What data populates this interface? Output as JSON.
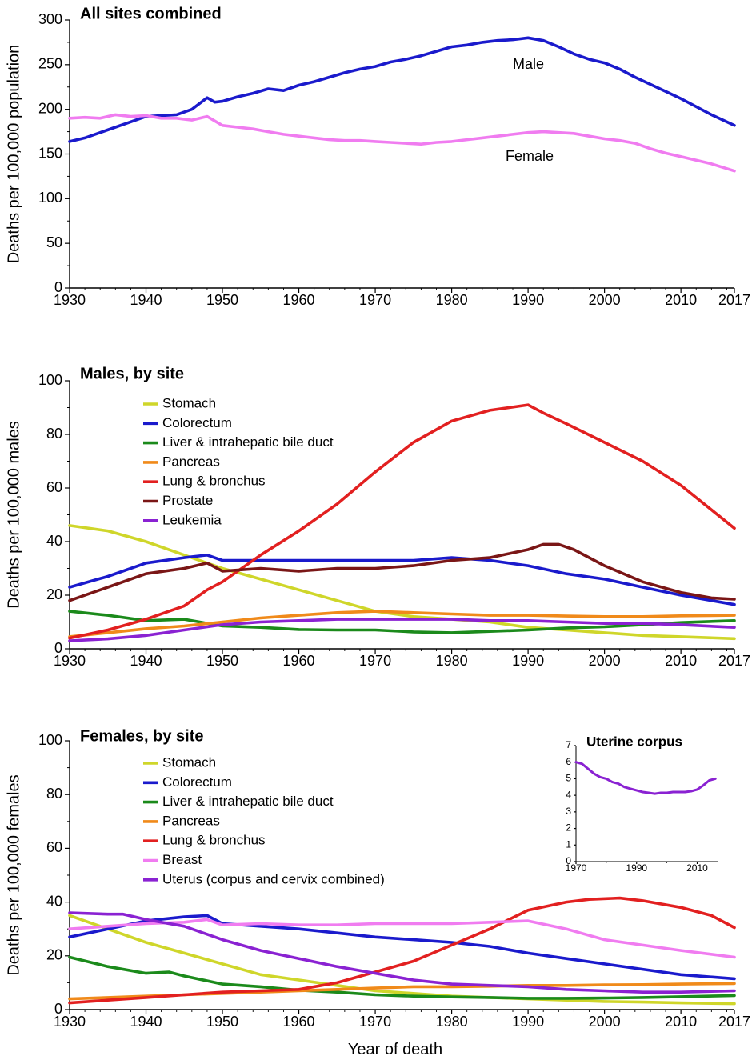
{
  "figure": {
    "xlabel": "Year of death"
  },
  "chart_data": [
    {
      "type": "line",
      "title": "All sites combined",
      "ylabel": "Deaths per 100,000 population",
      "xlim": [
        1930,
        2017
      ],
      "ylim": [
        0,
        300
      ],
      "xticks": [
        1930,
        1940,
        1950,
        1960,
        1970,
        1980,
        1990,
        2000,
        2010,
        2017
      ],
      "yticks": [
        0,
        50,
        100,
        150,
        200,
        250,
        300
      ],
      "series": [
        {
          "name": "Male",
          "label": "Male",
          "color": "#1a1acc",
          "x": [
            1930,
            1932,
            1934,
            1936,
            1938,
            1940,
            1942,
            1944,
            1946,
            1948,
            1949,
            1950,
            1952,
            1954,
            1956,
            1958,
            1960,
            1962,
            1964,
            1966,
            1968,
            1970,
            1972,
            1974,
            1976,
            1978,
            1980,
            1982,
            1984,
            1986,
            1988,
            1990,
            1992,
            1994,
            1996,
            1998,
            2000,
            2002,
            2004,
            2006,
            2008,
            2010,
            2012,
            2014,
            2017
          ],
          "y": [
            164,
            168,
            174,
            180,
            186,
            192,
            193,
            194,
            200,
            213,
            208,
            209,
            214,
            218,
            223,
            221,
            227,
            231,
            236,
            241,
            245,
            248,
            253,
            256,
            260,
            265,
            270,
            272,
            275,
            277,
            278,
            280,
            277,
            270,
            262,
            256,
            252,
            245,
            236,
            228,
            220,
            212,
            203,
            194,
            182
          ]
        },
        {
          "name": "Female",
          "label": "Female",
          "color": "#f07cf0",
          "x": [
            1930,
            1932,
            1934,
            1936,
            1938,
            1940,
            1942,
            1944,
            1946,
            1948,
            1950,
            1952,
            1954,
            1956,
            1958,
            1960,
            1962,
            1964,
            1966,
            1968,
            1970,
            1972,
            1974,
            1976,
            1978,
            1980,
            1982,
            1984,
            1986,
            1988,
            1990,
            1992,
            1994,
            1996,
            1998,
            2000,
            2002,
            2004,
            2006,
            2008,
            2010,
            2012,
            2014,
            2017
          ],
          "y": [
            190,
            191,
            190,
            194,
            192,
            193,
            190,
            190,
            188,
            192,
            182,
            180,
            178,
            175,
            172,
            170,
            168,
            166,
            165,
            165,
            164,
            163,
            162,
            161,
            163,
            164,
            166,
            168,
            170,
            172,
            174,
            175,
            174,
            173,
            170,
            167,
            165,
            162,
            156,
            151,
            147,
            143,
            139,
            131
          ]
        }
      ]
    },
    {
      "type": "line",
      "title": "Males, by site",
      "ylabel": "Deaths per 100,000 males",
      "xlim": [
        1930,
        2017
      ],
      "ylim": [
        0,
        100
      ],
      "xticks": [
        1930,
        1940,
        1950,
        1960,
        1970,
        1980,
        1990,
        2000,
        2010,
        2017
      ],
      "yticks": [
        0,
        20,
        40,
        60,
        80,
        100
      ],
      "legend": "top-left",
      "series": [
        {
          "name": "Stomach",
          "color": "#cfd62a",
          "x": [
            1930,
            1935,
            1940,
            1945,
            1950,
            1955,
            1960,
            1965,
            1970,
            1975,
            1980,
            1985,
            1990,
            1995,
            2000,
            2005,
            2010,
            2017
          ],
          "y": [
            46,
            44,
            40,
            35,
            30,
            26,
            22,
            18,
            14,
            12,
            11,
            10,
            8,
            7,
            6,
            5,
            4.5,
            3.8
          ]
        },
        {
          "name": "Colorectum",
          "color": "#1a1acc",
          "x": [
            1930,
            1935,
            1940,
            1945,
            1948,
            1950,
            1955,
            1960,
            1965,
            1970,
            1975,
            1980,
            1985,
            1990,
            1995,
            2000,
            2005,
            2010,
            2017
          ],
          "y": [
            23,
            27,
            32,
            34,
            35,
            33,
            33,
            33,
            33,
            33,
            33,
            34,
            33,
            31,
            28,
            26,
            23,
            20,
            16.5
          ]
        },
        {
          "name": "Liver & intrahepatic bile duct",
          "color": "#1b8a1b",
          "x": [
            1930,
            1935,
            1940,
            1945,
            1950,
            1955,
            1960,
            1965,
            1970,
            1975,
            1980,
            1985,
            1990,
            1995,
            2000,
            2005,
            2010,
            2017
          ],
          "y": [
            14,
            12.5,
            10.5,
            11,
            8.5,
            8,
            7.2,
            7,
            7,
            6.3,
            6,
            6.5,
            7,
            7.8,
            8.2,
            9,
            9.8,
            10.5
          ]
        },
        {
          "name": "Pancreas",
          "color": "#f08a1a",
          "x": [
            1930,
            1935,
            1940,
            1945,
            1950,
            1955,
            1960,
            1965,
            1970,
            1975,
            1980,
            1985,
            1990,
            1995,
            2000,
            2005,
            2010,
            2017
          ],
          "y": [
            4.5,
            6,
            7.5,
            8.5,
            10,
            11.5,
            12.5,
            13.5,
            14,
            13.5,
            13,
            12.5,
            12.5,
            12.2,
            12,
            12,
            12.3,
            12.5
          ]
        },
        {
          "name": "Lung & bronchus",
          "color": "#e22020",
          "x": [
            1930,
            1935,
            1940,
            1945,
            1948,
            1950,
            1955,
            1960,
            1965,
            1970,
            1975,
            1980,
            1985,
            1990,
            1992,
            1995,
            2000,
            2005,
            2010,
            2017
          ],
          "y": [
            4,
            7,
            11,
            16,
            22,
            25,
            35,
            44,
            54,
            66,
            77,
            85,
            89,
            91,
            88,
            84,
            77,
            70,
            61,
            45
          ]
        },
        {
          "name": "Prostate",
          "color": "#7a1616",
          "x": [
            1930,
            1935,
            1940,
            1945,
            1948,
            1950,
            1955,
            1960,
            1965,
            1970,
            1975,
            1980,
            1985,
            1990,
            1992,
            1994,
            1996,
            2000,
            2005,
            2010,
            2014,
            2017
          ],
          "y": [
            18,
            23,
            28,
            30,
            32,
            29,
            30,
            29,
            30,
            30,
            31,
            33,
            34,
            37,
            39,
            39,
            37,
            31,
            25,
            21,
            19,
            18.5
          ]
        },
        {
          "name": "Leukemia",
          "color": "#8a22d2",
          "x": [
            1930,
            1935,
            1940,
            1945,
            1950,
            1955,
            1960,
            1965,
            1970,
            1975,
            1980,
            1985,
            1990,
            1995,
            2000,
            2005,
            2010,
            2017
          ],
          "y": [
            3,
            3.7,
            5,
            7,
            9,
            10,
            10.5,
            11,
            11,
            11,
            11,
            10.5,
            10.5,
            10,
            9.5,
            9.5,
            9,
            8
          ]
        }
      ]
    },
    {
      "type": "line",
      "title": "Females, by site",
      "ylabel": "Deaths per 100,000 females",
      "xlim": [
        1930,
        2017
      ],
      "ylim": [
        0,
        100
      ],
      "xticks": [
        1930,
        1940,
        1950,
        1960,
        1970,
        1980,
        1990,
        2000,
        2010,
        2017
      ],
      "yticks": [
        0,
        20,
        40,
        60,
        80,
        100
      ],
      "legend": "top-left",
      "series": [
        {
          "name": "Stomach",
          "color": "#cfd62a",
          "x": [
            1930,
            1935,
            1940,
            1945,
            1950,
            1955,
            1960,
            1965,
            1970,
            1975,
            1980,
            1985,
            1990,
            1995,
            2000,
            2005,
            2010,
            2017
          ],
          "y": [
            35,
            30,
            25,
            21,
            17,
            13,
            11,
            9,
            7,
            6,
            5,
            4.5,
            4,
            3.5,
            3,
            2.8,
            2.5,
            2.2
          ]
        },
        {
          "name": "Colorectum",
          "color": "#1a1acc",
          "x": [
            1930,
            1935,
            1940,
            1945,
            1948,
            1950,
            1955,
            1960,
            1965,
            1970,
            1975,
            1980,
            1985,
            1990,
            1995,
            2000,
            2005,
            2010,
            2017
          ],
          "y": [
            27,
            30,
            33,
            34.5,
            35,
            32,
            31,
            30,
            28.5,
            27,
            26,
            25,
            23.5,
            21,
            19,
            17,
            15,
            13,
            11.5
          ]
        },
        {
          "name": "Liver & intrahepatic bile duct",
          "color": "#1b8a1b",
          "x": [
            1930,
            1935,
            1940,
            1943,
            1945,
            1950,
            1955,
            1960,
            1965,
            1970,
            1975,
            1980,
            1985,
            1990,
            1995,
            2000,
            2005,
            2010,
            2017
          ],
          "y": [
            19.5,
            16,
            13.5,
            14,
            12.5,
            9.5,
            8.5,
            7.2,
            6.5,
            5.5,
            5,
            4.7,
            4.5,
            4.2,
            4.2,
            4.3,
            4.5,
            4.8,
            5.2
          ]
        },
        {
          "name": "Pancreas",
          "color": "#f08a1a",
          "x": [
            1930,
            1935,
            1940,
            1945,
            1950,
            1955,
            1960,
            1965,
            1970,
            1975,
            1980,
            1985,
            1990,
            1995,
            2000,
            2005,
            2010,
            2017
          ],
          "y": [
            4,
            4.5,
            5,
            5.5,
            6,
            6.5,
            7,
            7.5,
            8,
            8.5,
            8.5,
            8.7,
            9,
            9,
            9.2,
            9.3,
            9.5,
            9.7
          ]
        },
        {
          "name": "Lung & bronchus",
          "color": "#e22020",
          "x": [
            1930,
            1935,
            1940,
            1945,
            1950,
            1955,
            1960,
            1965,
            1970,
            1975,
            1980,
            1985,
            1990,
            1995,
            1998,
            2002,
            2005,
            2010,
            2014,
            2017
          ],
          "y": [
            2.5,
            3.5,
            4.5,
            5.5,
            6.5,
            7,
            7.5,
            10,
            14,
            18,
            24,
            30,
            37,
            40,
            41,
            41.5,
            40.5,
            38,
            35,
            30.5
          ]
        },
        {
          "name": "Breast",
          "color": "#f07cf0",
          "x": [
            1930,
            1935,
            1940,
            1945,
            1948,
            1950,
            1955,
            1960,
            1965,
            1970,
            1975,
            1980,
            1985,
            1990,
            1995,
            2000,
            2005,
            2010,
            2017
          ],
          "y": [
            30,
            31,
            32,
            32.5,
            33.5,
            31.5,
            32,
            31.5,
            31.5,
            32,
            32,
            32,
            32.5,
            33,
            30,
            26,
            24,
            22,
            19.5
          ]
        },
        {
          "name": "Uterus (corpus and cervix combined)",
          "color": "#8a22d2",
          "x": [
            1930,
            1935,
            1937,
            1940,
            1945,
            1950,
            1955,
            1960,
            1965,
            1970,
            1975,
            1980,
            1985,
            1990,
            1995,
            2000,
            2005,
            2010,
            2017
          ],
          "y": [
            36,
            35.5,
            35.5,
            33.5,
            31,
            26,
            22,
            19,
            16,
            13.5,
            11,
            9.5,
            9,
            8.5,
            7.5,
            7,
            6.5,
            6.5,
            7
          ]
        }
      ]
    },
    {
      "type": "line",
      "title": "Uterine corpus",
      "xlim": [
        1970,
        2017
      ],
      "ylim": [
        0,
        7
      ],
      "xticks": [
        1970,
        1990,
        2010
      ],
      "yticks": [
        0,
        1,
        2,
        3,
        4,
        5,
        6,
        7
      ],
      "series": [
        {
          "name": "Uterine corpus",
          "color": "#8a22d2",
          "x": [
            1970,
            1972,
            1974,
            1976,
            1978,
            1980,
            1982,
            1984,
            1986,
            1988,
            1990,
            1992,
            1994,
            1996,
            1998,
            2000,
            2002,
            2004,
            2006,
            2008,
            2010,
            2012,
            2014,
            2016
          ],
          "y": [
            6,
            5.9,
            5.6,
            5.3,
            5.1,
            5.0,
            4.8,
            4.7,
            4.5,
            4.4,
            4.3,
            4.2,
            4.15,
            4.1,
            4.15,
            4.15,
            4.2,
            4.2,
            4.2,
            4.25,
            4.35,
            4.6,
            4.9,
            5.0
          ]
        }
      ]
    }
  ]
}
